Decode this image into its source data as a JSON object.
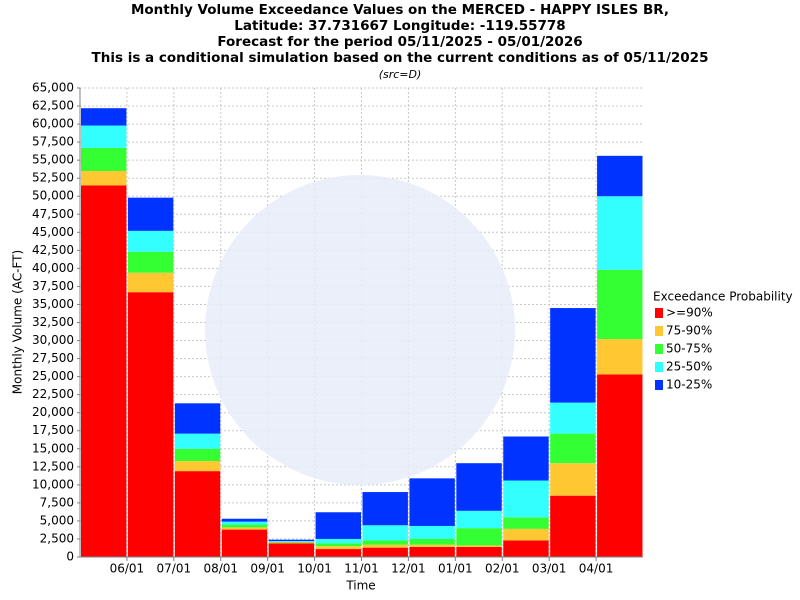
{
  "chart_data": {
    "type": "stacked_bar",
    "title": [
      "Monthly Volume Exceedance Values on the MERCED - HAPPY ISLES BR,",
      "Latitude: 37.731667 Longitude: -119.55778",
      "Forecast for the period 05/11/2025 - 05/01/2026",
      "This is a conditional simulation based on the current conditions as of 05/11/2025"
    ],
    "subtitle": "(src=D)",
    "x_label": "Time",
    "y_label": "Monthly Volume (AC-FT)",
    "legend_title": "Exceedance Probability",
    "categories": [
      null,
      null,
      null,
      null,
      null,
      null,
      null,
      null,
      null,
      null,
      null,
      null
    ],
    "xtick_labels": [
      "06/01",
      "07/01",
      "08/01",
      "09/01",
      "10/01",
      "11/01",
      "12/01",
      "01/01",
      "02/01",
      "03/01",
      "04/01"
    ],
    "series": [
      {
        "name": ">=90%",
        "color": "#ff0000",
        "values": [
          51500,
          36700,
          11900,
          3800,
          1900,
          1100,
          1300,
          1400,
          1400,
          2300,
          8500,
          25300
        ]
      },
      {
        "name": "75-90%",
        "color": "#ffc833",
        "values": [
          2000,
          2700,
          1400,
          300,
          100,
          400,
          400,
          300,
          200,
          1600,
          4500,
          4900
        ]
      },
      {
        "name": "50-75%",
        "color": "#33ff33",
        "values": [
          3200,
          2900,
          1700,
          400,
          100,
          400,
          600,
          800,
          2400,
          1600,
          4100,
          9600
        ]
      },
      {
        "name": "25-50%",
        "color": "#33ffff",
        "values": [
          3100,
          2900,
          2100,
          400,
          100,
          600,
          2100,
          1800,
          2400,
          5100,
          4300,
          10200
        ]
      },
      {
        "name": "10-25%",
        "color": "#0033ff",
        "values": [
          2400,
          4600,
          4200,
          400,
          200,
          3700,
          4600,
          6600,
          6600,
          6100,
          13100,
          5600
        ]
      }
    ],
    "ylim": [
      0,
      65000
    ],
    "yticks": [
      0,
      {
        "value": 2500,
        "label": "2,500"
      },
      {
        "value": 5000,
        "label": "5,000"
      },
      {
        "value": 7500,
        "label": "7,500"
      },
      {
        "value": 10000,
        "label": "10,000"
      },
      {
        "value": 12500,
        "label": "12,500"
      },
      {
        "value": 15000,
        "label": "15,000"
      },
      {
        "value": 17500,
        "label": "17,500"
      },
      {
        "value": 20000,
        "label": "20,000"
      },
      {
        "value": 22500,
        "label": "22,500"
      },
      {
        "value": 25000,
        "label": "25,000"
      },
      {
        "value": 27500,
        "label": "27,500"
      },
      {
        "value": 30000,
        "label": "30,000"
      },
      {
        "value": 32500,
        "label": "32,500"
      },
      {
        "value": 35000,
        "label": "35,000"
      },
      {
        "value": 37500,
        "label": "37,500"
      },
      {
        "value": 40000,
        "label": "40,000"
      },
      {
        "value": 42500,
        "label": "42,500"
      },
      {
        "value": 45000,
        "label": "45,000"
      },
      {
        "value": 47500,
        "label": "47,500"
      },
      {
        "value": 50000,
        "label": "50,000"
      },
      {
        "value": 52500,
        "label": "52,500"
      },
      {
        "value": 55000,
        "label": "55,000"
      },
      {
        "value": 57500,
        "label": "57,500"
      },
      {
        "value": 60000,
        "label": "60,000"
      },
      {
        "value": 62500,
        "label": "62,500"
      },
      {
        "value": 65000,
        "label": "65,000"
      }
    ],
    "grid": true,
    "legend": "right"
  }
}
